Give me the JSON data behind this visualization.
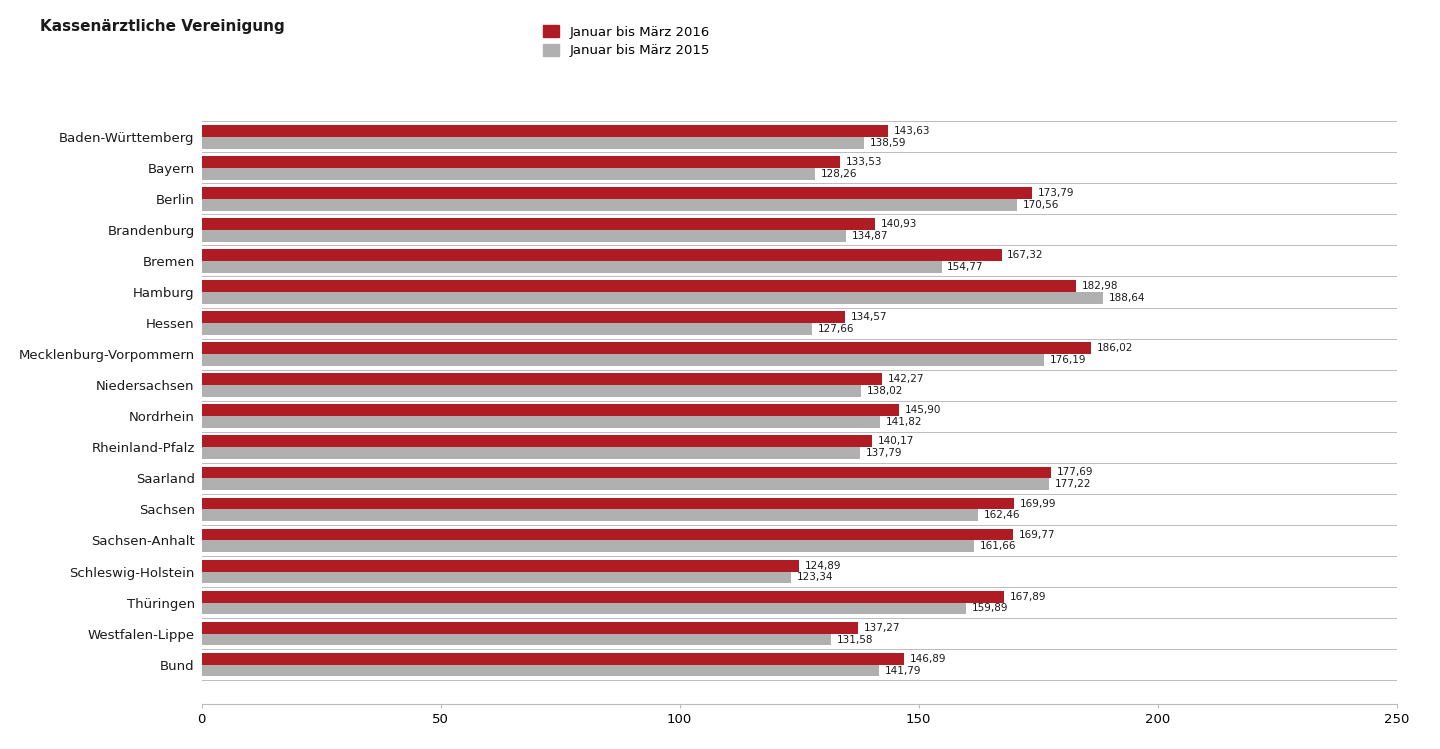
{
  "categories": [
    "Baden-Württemberg",
    "Bayern",
    "Berlin",
    "Brandenburg",
    "Bremen",
    "Hamburg",
    "Hessen",
    "Mecklenburg-Vorpommern",
    "Niedersachsen",
    "Nordrhein",
    "Rheinland-Pfalz",
    "Saarland",
    "Sachsen",
    "Sachsen-Anhalt",
    "Schleswig-Holstein",
    "Thüringen",
    "Westfalen-Lippe",
    "Bund"
  ],
  "values_2016": [
    143.63,
    133.53,
    173.79,
    140.93,
    167.32,
    182.98,
    134.57,
    186.02,
    142.27,
    145.9,
    140.17,
    177.69,
    169.99,
    169.77,
    124.89,
    167.89,
    137.27,
    146.89
  ],
  "values_2015": [
    138.59,
    128.26,
    170.56,
    134.87,
    154.77,
    188.64,
    127.66,
    176.19,
    138.02,
    141.82,
    137.79,
    177.22,
    162.46,
    161.66,
    123.34,
    159.89,
    131.58,
    141.79
  ],
  "color_2016": "#b01c23",
  "color_2015": "#b0b0b0",
  "legend_label_2016": "Januar bis März 2016",
  "legend_label_2015": "Januar bis März 2015",
  "ylabel_label": "Kassenärztliche Vereinigung",
  "xlim": [
    0,
    250
  ],
  "xticks": [
    0,
    50,
    100,
    150,
    200,
    250
  ],
  "bar_height": 0.38,
  "background_color": "#ffffff",
  "text_color": "#1a1a1a",
  "separator_color": "#bbbbbb",
  "value_fontsize": 7.5,
  "tick_fontsize": 9.5,
  "legend_fontsize": 9.5,
  "ylabel_fontsize": 11
}
